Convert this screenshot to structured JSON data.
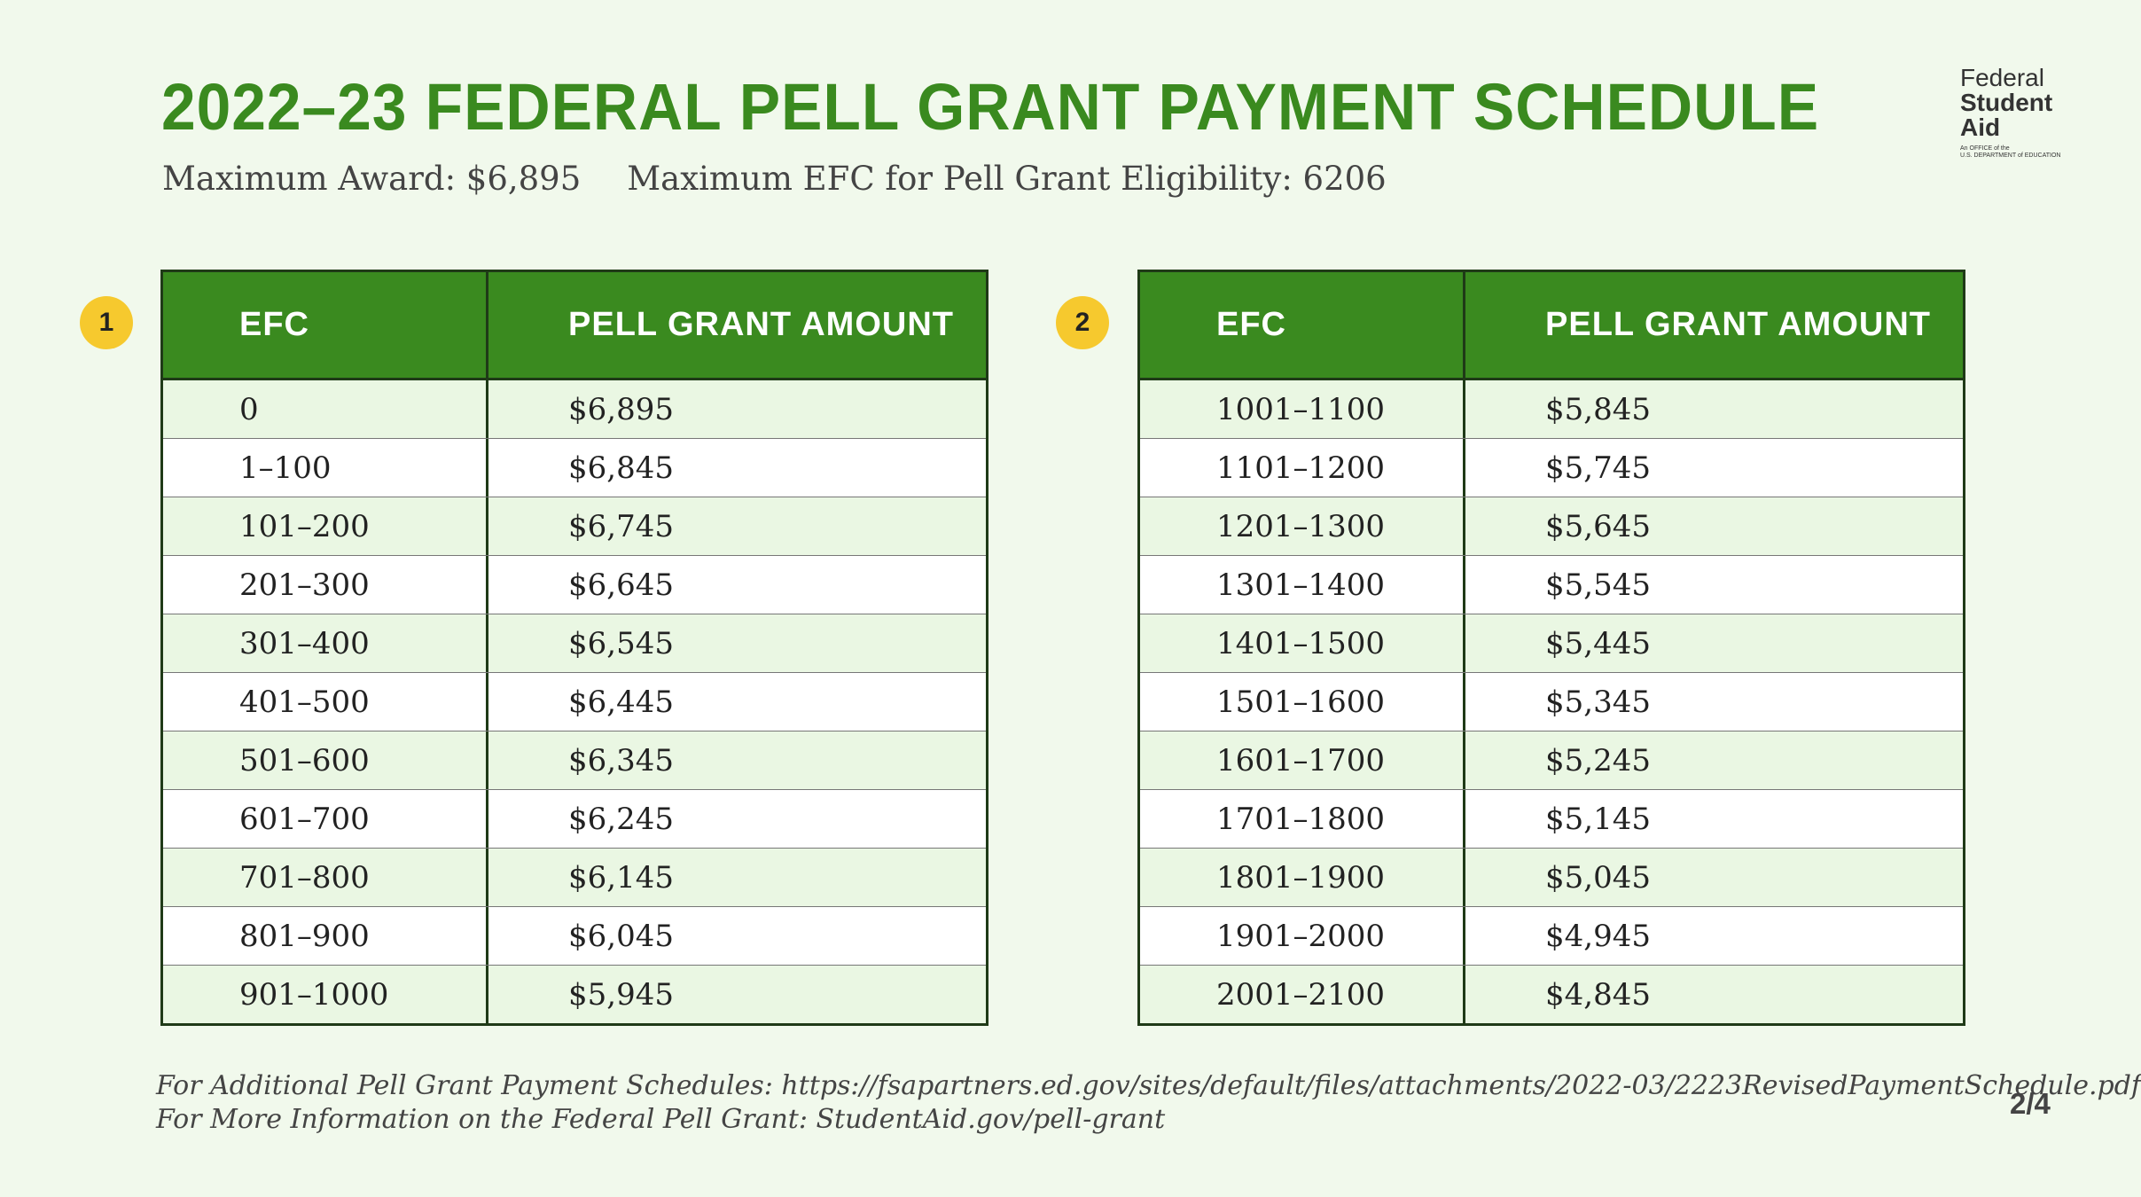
{
  "title": "2022–23 FEDERAL PELL GRANT PAYMENT SCHEDULE",
  "subtitle": {
    "max_award": "Maximum Award: $6,895",
    "max_efc": "Maximum EFC for Pell Grant Eligibility: 6206"
  },
  "logo": {
    "line1": "Federal",
    "line2": "Student",
    "line3": "Aid",
    "line4": "An OFFICE of the",
    "line5": "U.S. DEPARTMENT of EDUCATION"
  },
  "tables": [
    {
      "badge": "1",
      "headers": [
        "EFC",
        "PELL GRANT AMOUNT"
      ],
      "rows": [
        [
          "0",
          "$6,895"
        ],
        [
          "1–100",
          "$6,845"
        ],
        [
          "101–200",
          "$6,745"
        ],
        [
          "201–300",
          "$6,645"
        ],
        [
          "301–400",
          "$6,545"
        ],
        [
          "401–500",
          "$6,445"
        ],
        [
          "501–600",
          "$6,345"
        ],
        [
          "601–700",
          "$6,245"
        ],
        [
          "701–800",
          "$6,145"
        ],
        [
          "801–900",
          "$6,045"
        ],
        [
          "901–1000",
          "$5,945"
        ]
      ]
    },
    {
      "badge": "2",
      "headers": [
        "EFC",
        "PELL GRANT AMOUNT"
      ],
      "rows": [
        [
          "1001–1100",
          "$5,845"
        ],
        [
          "1101–1200",
          "$5,745"
        ],
        [
          "1201–1300",
          "$5,645"
        ],
        [
          "1301–1400",
          "$5,545"
        ],
        [
          "1401–1500",
          "$5,445"
        ],
        [
          "1501–1600",
          "$5,345"
        ],
        [
          "1601–1700",
          "$5,245"
        ],
        [
          "1701–1800",
          "$5,145"
        ],
        [
          "1801–1900",
          "$5,045"
        ],
        [
          "1901–2000",
          "$4,945"
        ],
        [
          "2001–2100",
          "$4,845"
        ]
      ]
    }
  ],
  "footer": {
    "line1": "For Additional Pell Grant Payment Schedules: https://fsapartners.ed.gov/sites/default/files/attachments/2022-03/2223RevisedPaymentSchedule.pdf",
    "line2": "For More Information on the Federal Pell Grant: StudentAid.gov/pell-grant"
  },
  "page_number": "2/4",
  "colors": {
    "background": "#f1f9ec",
    "brand_green": "#3a8a1f",
    "badge_yellow": "#f6c92e",
    "row_tint": "#eaf7e3"
  }
}
